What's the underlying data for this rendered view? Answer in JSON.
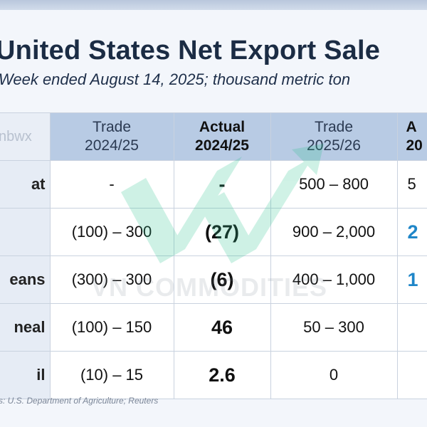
{
  "header": {
    "title": "United States Net Export Sale",
    "subtitle": "Week ended August 14, 2025; thousand metric ton"
  },
  "watermark": {
    "text": "VN COMMODITIES"
  },
  "corner_text": "nbwx",
  "table": {
    "columns": [
      {
        "line1": "Trade",
        "line2": "2024/25"
      },
      {
        "line1": "Actual",
        "line2": "2024/25"
      },
      {
        "line1": "Trade",
        "line2": "2025/26"
      },
      {
        "line1": "A",
        "line2": "20"
      }
    ],
    "rows": [
      {
        "commodity": "at",
        "trade_old": "-",
        "actual_old": "-",
        "trade_new": "500 – 800",
        "actual_new": "5"
      },
      {
        "commodity": "",
        "trade_old": "(100) – 300",
        "actual_old": "(27)",
        "trade_new": "900 – 2,000",
        "actual_new": "2"
      },
      {
        "commodity": "eans",
        "trade_old": "(300) – 300",
        "actual_old": "(6)",
        "trade_new": "400 – 1,000",
        "actual_new": "1"
      },
      {
        "commodity": "neal",
        "trade_old": "(100) – 150",
        "actual_old": "46",
        "trade_new": "50 – 300",
        "actual_new": ""
      },
      {
        "commodity": "il",
        "trade_old": "(10) – 15",
        "actual_old": "2.6",
        "trade_new": "0",
        "actual_new": ""
      }
    ]
  },
  "footer": {
    "source": "s: U.S. Department of Agriculture; Reuters"
  },
  "colors": {
    "header_fill": "#b8cbe4",
    "title": "#1b2c44",
    "new_actual": "#1f86c8",
    "watermark": "#27c28c"
  }
}
